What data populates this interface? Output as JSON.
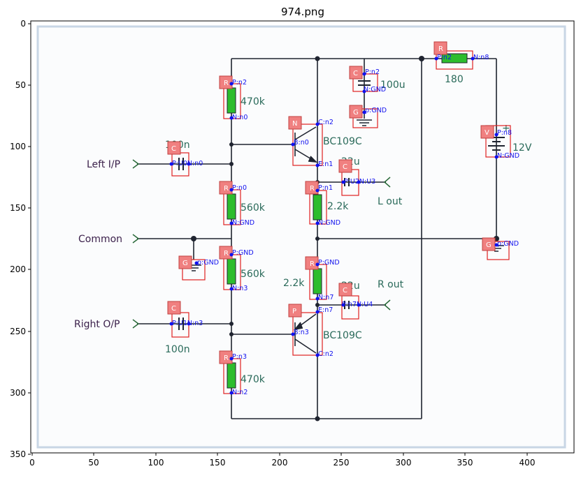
{
  "title": "974.png",
  "axes": {
    "x_ticks": [
      "0",
      "50",
      "100",
      "150",
      "200",
      "250",
      "300",
      "350",
      "400"
    ],
    "y_ticks": [
      "0",
      "50",
      "100",
      "150",
      "200",
      "250",
      "300",
      "350"
    ]
  },
  "circuit_labels": {
    "left_in": "Left I/P",
    "common": "Common",
    "right_out": "Right O/P",
    "l_out": "L out",
    "r_out": "R out"
  },
  "component_values": {
    "r_top": "470k",
    "c_left": "100n",
    "r_mid": "560k",
    "r_lower": "560k",
    "c_right": "100n",
    "r_bottom": "470k",
    "q1": "BC109C",
    "q2": "BC109C",
    "r_e1": "2.2k",
    "r_e2": "2.2k",
    "c_out1": "22u",
    "c_out2": "22u",
    "c_supply": "100u",
    "r_supply": "180",
    "battery": "12V",
    "plus": "+"
  },
  "badges": [
    "R",
    "C",
    "R",
    "G",
    "R",
    "C",
    "R",
    "N",
    "R",
    "C",
    "R",
    "P",
    "C",
    "R",
    "C",
    "G",
    "V",
    "G"
  ],
  "annotations": {
    "r1_p": "P:n2",
    "r1_n": "N:n0",
    "c1": "P:U0N:n0",
    "r2_p": "P:n0",
    "r2_n": "N:GND",
    "g1": "p:GND",
    "r3_p": "P:GND",
    "r3_n": "N:n3",
    "c2": "P:U1N:n3",
    "r4_p": "P:n3",
    "r4_n": "N:n2",
    "q1_c": "C:n2",
    "q1_b": "B:n0",
    "q1_e": "E:n1",
    "r5_p": "P:n1",
    "r5_n": "N:GND",
    "c3": "P:U2N:U3",
    "r6_p": "P:GND",
    "r6_n": "N:n7",
    "q2_e": "E:n7",
    "q2_b": "B:n3",
    "q2_c": "C:n2",
    "c4": "P:n7N:U4",
    "c5_p": "P:n2",
    "c5_n": "N:GND",
    "g2": "p:GND",
    "r7_p": "P:n2",
    "r7_n": "N:n8",
    "v_p": "P:n8",
    "v_n": "N:GND",
    "g3": "p:GND"
  }
}
